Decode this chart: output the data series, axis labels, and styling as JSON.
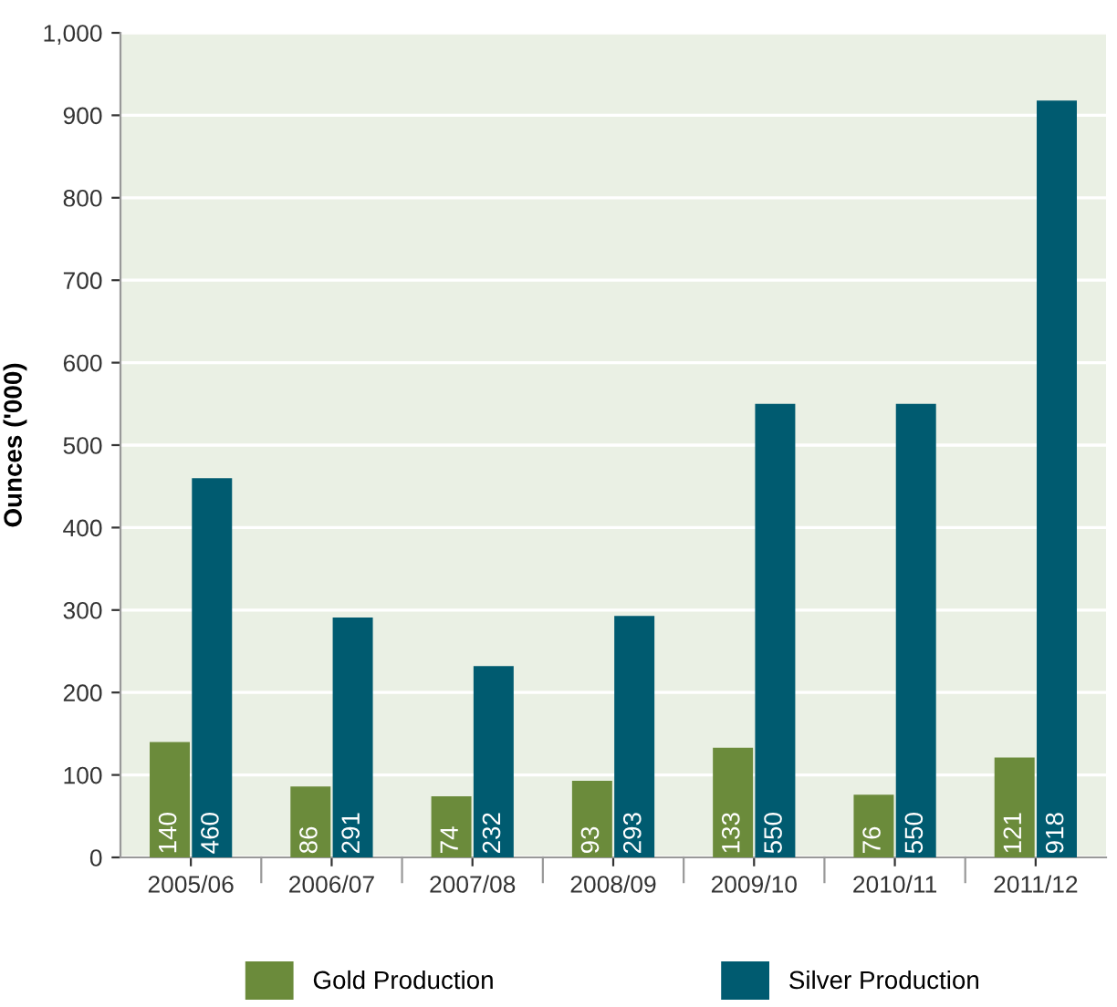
{
  "chart_data": {
    "type": "bar",
    "ylabel": "Ounces ('000)",
    "categories": [
      "2005/06",
      "2006/07",
      "2007/08",
      "2008/09",
      "2009/10",
      "2010/11",
      "2011/12"
    ],
    "series": [
      {
        "name": "Gold Production",
        "color": "#6b8b3b",
        "values": [
          140,
          86,
          74,
          93,
          133,
          76,
          121
        ]
      },
      {
        "name": "Silver Production",
        "color": "#005b70",
        "values": [
          460,
          291,
          232,
          293,
          550,
          550,
          918
        ]
      }
    ],
    "data_labels": true,
    "ylim": [
      0,
      1000
    ],
    "yticks": [
      0,
      100,
      200,
      300,
      400,
      500,
      600,
      700,
      800,
      900,
      {
        "value": 1000,
        "label": "1,000"
      }
    ],
    "grid": "y",
    "legend": "bottom"
  }
}
